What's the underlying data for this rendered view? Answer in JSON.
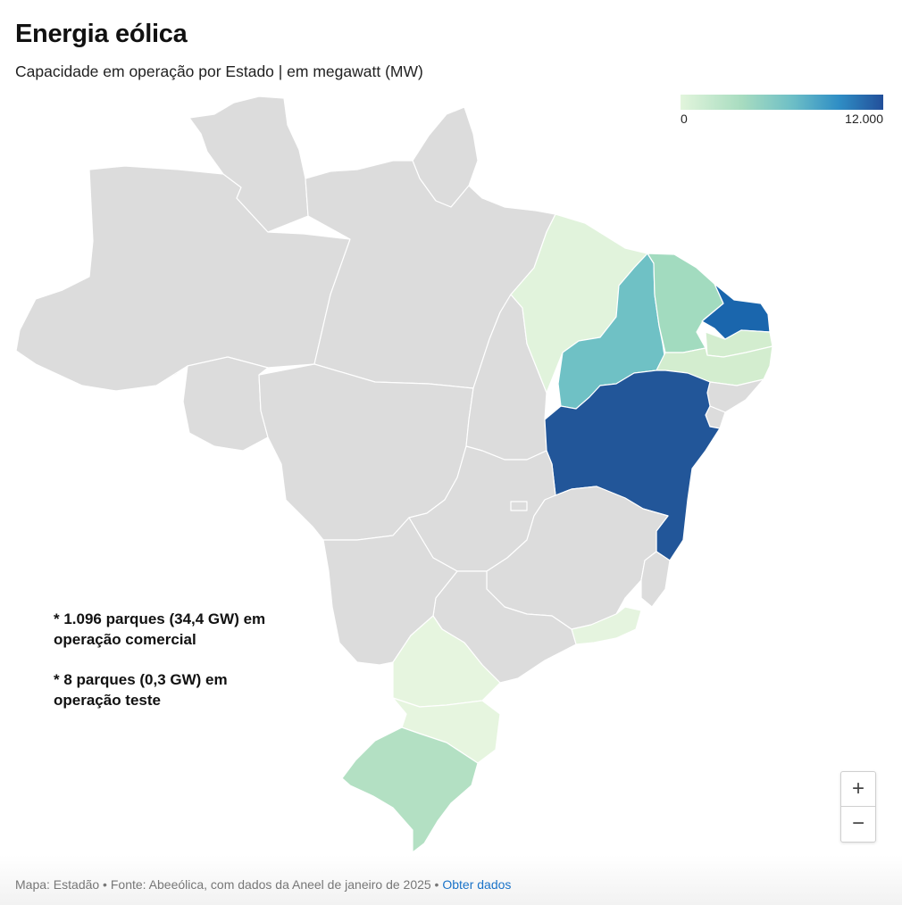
{
  "header": {
    "title": "Energia eólica",
    "subtitle": "Capacidade em operação por Estado | em megawatt (MW)"
  },
  "legend": {
    "min_label": "0",
    "max_label": "12.000",
    "colors": [
      "#e2f5dc",
      "#a8dcc0",
      "#6ebfc6",
      "#2f8ec5",
      "#224f9a"
    ]
  },
  "map": {
    "no_data_color": "#dcdcdc",
    "border_color": "#ffffff",
    "states": [
      {
        "id": "AC",
        "color": "#dcdcdc"
      },
      {
        "id": "AM",
        "color": "#dcdcdc"
      },
      {
        "id": "RR",
        "color": "#dcdcdc"
      },
      {
        "id": "AP",
        "color": "#dcdcdc"
      },
      {
        "id": "PA",
        "color": "#dcdcdc"
      },
      {
        "id": "RO",
        "color": "#dcdcdc"
      },
      {
        "id": "MT",
        "color": "#dcdcdc"
      },
      {
        "id": "TO",
        "color": "#dcdcdc"
      },
      {
        "id": "MA",
        "color": "#e1f3dc"
      },
      {
        "id": "PI",
        "color": "#6fc1c5"
      },
      {
        "id": "CE",
        "color": "#a2dbbf"
      },
      {
        "id": "RN",
        "color": "#1a66ad"
      },
      {
        "id": "PB",
        "color": "#d3edcf"
      },
      {
        "id": "PE",
        "color": "#d3edcf"
      },
      {
        "id": "AL",
        "color": "#dcdcdc"
      },
      {
        "id": "SE",
        "color": "#dcdcdc"
      },
      {
        "id": "BA",
        "color": "#225699"
      },
      {
        "id": "GO",
        "color": "#dcdcdc"
      },
      {
        "id": "DF",
        "color": "#dcdcdc"
      },
      {
        "id": "MG",
        "color": "#dcdcdc"
      },
      {
        "id": "ES",
        "color": "#dcdcdc"
      },
      {
        "id": "RJ",
        "color": "#e5f4df"
      },
      {
        "id": "SP",
        "color": "#dcdcdc"
      },
      {
        "id": "MS",
        "color": "#dcdcdc"
      },
      {
        "id": "PR",
        "color": "#e6f5df"
      },
      {
        "id": "SC",
        "color": "#e6f5df"
      },
      {
        "id": "RS",
        "color": "#b3e0c3"
      }
    ]
  },
  "notes": {
    "line1": "* 1.096 parques (34,4 GW) em operação comercial",
    "line2": "* 8 parques (0,3 GW) em operação teste"
  },
  "zoom": {
    "in_label": "+",
    "out_label": "−"
  },
  "footer": {
    "credit": "Mapa: Estadão • Fonte: Abeeólica, com dados da Aneel de janeiro de 2025 • ",
    "link_label": "Obter dados"
  }
}
